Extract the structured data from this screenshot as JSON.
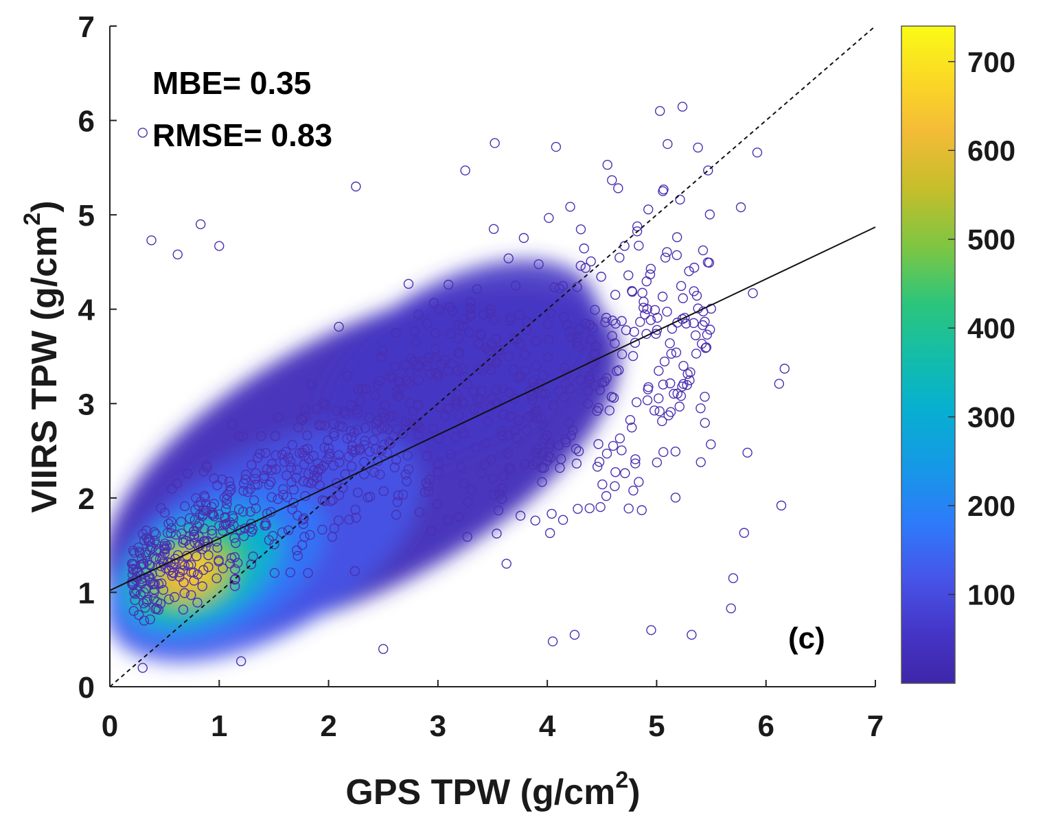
{
  "chart_data": {
    "type": "scatter",
    "subtype": "density-colored scatter",
    "xlabel": "GPS TPW (g/cm",
    "xlabel_sup": "2",
    "xlabel_close": ")",
    "ylabel": "VIIRS TPW (g/cm",
    "ylabel_sup": "2",
    "ylabel_close": ")",
    "xlim": [
      0,
      7
    ],
    "ylim": [
      0,
      7
    ],
    "x_ticks": [
      "0",
      "1",
      "2",
      "3",
      "4",
      "5",
      "6",
      "7"
    ],
    "y_ticks": [
      "0",
      "1",
      "2",
      "3",
      "4",
      "5",
      "6",
      "7"
    ],
    "grid": false,
    "one_to_one_line": {
      "style": "dashed",
      "from": [
        0,
        0
      ],
      "to": [
        7,
        7
      ]
    },
    "fit_line": {
      "style": "solid",
      "intercept": 1.02,
      "slope": 0.55
    },
    "annotations": {
      "mbe": "MBE= 0.35",
      "rmse": "RMSE= 0.83",
      "panel": "(c)"
    },
    "density_centroid": [
      0.75,
      1.2
    ],
    "colorbar": {
      "min": 0,
      "max": 740,
      "ticks": [
        "100",
        "200",
        "300",
        "400",
        "500",
        "600",
        "700"
      ],
      "tick_values": [
        100,
        200,
        300,
        400,
        500,
        600,
        700
      ],
      "colormap": "parula"
    },
    "sample_outliers": [
      [
        0.3,
        5.87
      ],
      [
        0.83,
        4.9
      ],
      [
        0.38,
        4.73
      ],
      [
        1.0,
        4.67
      ],
      [
        0.62,
        4.58
      ],
      [
        2.25,
        5.3
      ],
      [
        3.25,
        5.47
      ],
      [
        3.52,
        5.76
      ],
      [
        4.08,
        5.72
      ],
      [
        5.03,
        6.1
      ],
      [
        5.1,
        5.75
      ],
      [
        5.92,
        5.66
      ],
      [
        5.77,
        5.08
      ],
      [
        5.88,
        4.17
      ],
      [
        6.17,
        3.37
      ],
      [
        6.12,
        3.21
      ],
      [
        6.14,
        1.92
      ],
      [
        5.83,
        2.48
      ],
      [
        5.8,
        1.63
      ],
      [
        5.68,
        0.83
      ],
      [
        5.7,
        1.15
      ],
      [
        5.32,
        0.55
      ],
      [
        4.95,
        0.6
      ],
      [
        4.25,
        0.55
      ],
      [
        4.05,
        0.48
      ],
      [
        2.5,
        0.4
      ],
      [
        1.2,
        0.27
      ],
      [
        0.3,
        0.2
      ],
      [
        5.47,
        5.47
      ],
      [
        4.55,
        5.53
      ]
    ]
  }
}
